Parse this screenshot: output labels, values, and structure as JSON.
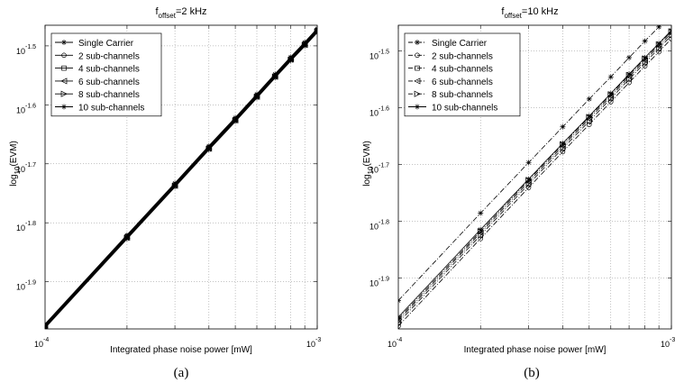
{
  "chart_data": [
    {
      "type": "line",
      "title_main": "f",
      "title_sub": "offset",
      "title_rest": "=2 kHz",
      "xlabel": "Integrated phase noise power [mW]",
      "ylabel_main": "log",
      "ylabel_sub": "10",
      "ylabel_rest": "(EVM)",
      "caption": "(a)",
      "x_scale": "log",
      "y_scale": "log",
      "xlim": [
        0.0001,
        0.001
      ],
      "ylim": [
        -1.98,
        -1.465
      ],
      "grid": true,
      "legend_position": "top-left",
      "x_tick_labels": [
        {
          "base": "10",
          "exp": "-4",
          "value": 0.0001
        },
        {
          "base": "10",
          "exp": "-3",
          "value": 0.001
        }
      ],
      "y_tick_labels": [
        {
          "base": "10",
          "exp": "-1.5",
          "value": -1.5
        },
        {
          "base": "10",
          "exp": "-1.6",
          "value": -1.6
        },
        {
          "base": "10",
          "exp": "-1.7",
          "value": -1.7
        },
        {
          "base": "10",
          "exp": "-1.8",
          "value": -1.8
        },
        {
          "base": "10",
          "exp": "-1.9",
          "value": -1.9
        }
      ],
      "x": [
        0.0001,
        0.0002,
        0.0003,
        0.0004,
        0.0005,
        0.0006,
        0.0007,
        0.0008,
        0.0009,
        0.001
      ],
      "series": [
        {
          "name": "Single Carrier",
          "marker": "star",
          "dash": "solid",
          "values": [
            -1.972,
            -1.821,
            -1.733,
            -1.67,
            -1.622,
            -1.582,
            -1.548,
            -1.519,
            -1.494,
            -1.471
          ]
        },
        {
          "name": "2 sub-channels",
          "marker": "circle",
          "dash": "solid",
          "values": [
            -1.974,
            -1.823,
            -1.735,
            -1.672,
            -1.624,
            -1.584,
            -1.55,
            -1.521,
            -1.496,
            -1.473
          ]
        },
        {
          "name": "4 sub-channels",
          "marker": "square",
          "dash": "solid",
          "values": [
            -1.975,
            -1.824,
            -1.736,
            -1.673,
            -1.625,
            -1.585,
            -1.551,
            -1.522,
            -1.497,
            -1.474
          ]
        },
        {
          "name": "6 sub-channels",
          "marker": "triangle-left",
          "dash": "solid",
          "values": [
            -1.976,
            -1.825,
            -1.737,
            -1.674,
            -1.626,
            -1.586,
            -1.552,
            -1.523,
            -1.498,
            -1.475
          ]
        },
        {
          "name": "8 sub-channels",
          "marker": "triangle-right",
          "dash": "solid",
          "values": [
            -1.977,
            -1.826,
            -1.738,
            -1.675,
            -1.627,
            -1.587,
            -1.553,
            -1.524,
            -1.499,
            -1.476
          ]
        },
        {
          "name": "10 sub-channels",
          "marker": "star",
          "dash": "solid",
          "values": [
            -1.978,
            -1.827,
            -1.739,
            -1.676,
            -1.628,
            -1.588,
            -1.554,
            -1.525,
            -1.5,
            -1.477
          ]
        }
      ]
    },
    {
      "type": "line",
      "title_main": "f",
      "title_sub": "offset",
      "title_rest": "=10 kHz",
      "xlabel": "Integrated phase noise power [mW]",
      "ylabel_main": "log",
      "ylabel_sub": "10",
      "ylabel_rest": "(EVM)",
      "caption": "(b)",
      "x_scale": "log",
      "y_scale": "log",
      "xlim": [
        0.0001,
        0.001
      ],
      "ylim": [
        -1.99,
        -1.455
      ],
      "grid": true,
      "legend_position": "top-left",
      "x_tick_labels": [
        {
          "base": "10",
          "exp": "-4",
          "value": 0.0001
        },
        {
          "base": "10",
          "exp": "-3",
          "value": 0.001
        }
      ],
      "y_tick_labels": [
        {
          "base": "10",
          "exp": "-1.5",
          "value": -1.5
        },
        {
          "base": "10",
          "exp": "-1.6",
          "value": -1.6
        },
        {
          "base": "10",
          "exp": "-1.7",
          "value": -1.7
        },
        {
          "base": "10",
          "exp": "-1.8",
          "value": -1.8
        },
        {
          "base": "10",
          "exp": "-1.9",
          "value": -1.9
        }
      ],
      "x": [
        0.0001,
        0.0002,
        0.0003,
        0.0004,
        0.0005,
        0.0006,
        0.0007,
        0.0008,
        0.0009,
        0.001
      ],
      "series": [
        {
          "name": "Single Carrier",
          "marker": "star",
          "dash": "dashdot",
          "values": [
            -1.94,
            -1.786,
            -1.697,
            -1.634,
            -1.585,
            -1.546,
            -1.512,
            -1.483,
            -1.458,
            -1.435
          ]
        },
        {
          "name": "2 sub-channels",
          "marker": "circle",
          "dash": "dashdot",
          "values": [
            -1.985,
            -1.831,
            -1.741,
            -1.678,
            -1.63,
            -1.59,
            -1.556,
            -1.527,
            -1.502,
            -1.479
          ]
        },
        {
          "name": "4 sub-channels",
          "marker": "square",
          "dash": "dashdot",
          "values": [
            -1.979,
            -1.825,
            -1.735,
            -1.672,
            -1.624,
            -1.584,
            -1.55,
            -1.521,
            -1.496,
            -1.473
          ]
        },
        {
          "name": "6 sub-channels",
          "marker": "triangle-left",
          "dash": "dashdot",
          "values": [
            -1.975,
            -1.821,
            -1.731,
            -1.668,
            -1.62,
            -1.58,
            -1.546,
            -1.517,
            -1.492,
            -1.469
          ]
        },
        {
          "name": "8 sub-channels",
          "marker": "triangle-right",
          "dash": "dashdot",
          "values": [
            -1.972,
            -1.818,
            -1.728,
            -1.665,
            -1.617,
            -1.577,
            -1.543,
            -1.514,
            -1.489,
            -1.466
          ]
        },
        {
          "name": "10 sub-channels",
          "marker": "star",
          "dash": "solid",
          "values": [
            -1.969,
            -1.815,
            -1.726,
            -1.663,
            -1.615,
            -1.575,
            -1.541,
            -1.512,
            -1.487,
            -1.464
          ]
        }
      ]
    }
  ]
}
